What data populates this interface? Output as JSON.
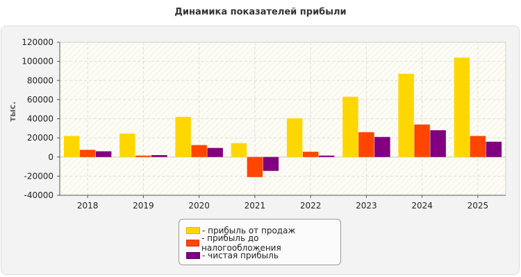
{
  "page": {
    "title": "Динамика показателей прибыли"
  },
  "chart_data": {
    "type": "bar",
    "title": "Динамика показателей прибыли",
    "xlabel": "",
    "ylabel": "тыс.",
    "ylim": [
      -40000,
      120000
    ],
    "yticks": [
      -40000,
      -20000,
      0,
      20000,
      40000,
      60000,
      80000,
      100000,
      120000
    ],
    "grid": true,
    "legend_position": "bottom",
    "categories": [
      "2018",
      "2019",
      "2020",
      "2021",
      "2022",
      "2023",
      "2024",
      "2025"
    ],
    "series": [
      {
        "name": "- прибыль от продаж",
        "color": "#FFD700",
        "values": [
          22000,
          24500,
          42000,
          14500,
          40500,
          63000,
          87000,
          104000
        ]
      },
      {
        "name": "- прибыль до налогообложения",
        "color": "#FF4500",
        "values": [
          7500,
          1500,
          12500,
          -21000,
          5500,
          26000,
          34000,
          22000
        ]
      },
      {
        "name": "- чистая прибыль",
        "color": "#800080",
        "values": [
          6000,
          2000,
          9500,
          -14500,
          1500,
          21000,
          28000,
          16000
        ]
      }
    ]
  }
}
